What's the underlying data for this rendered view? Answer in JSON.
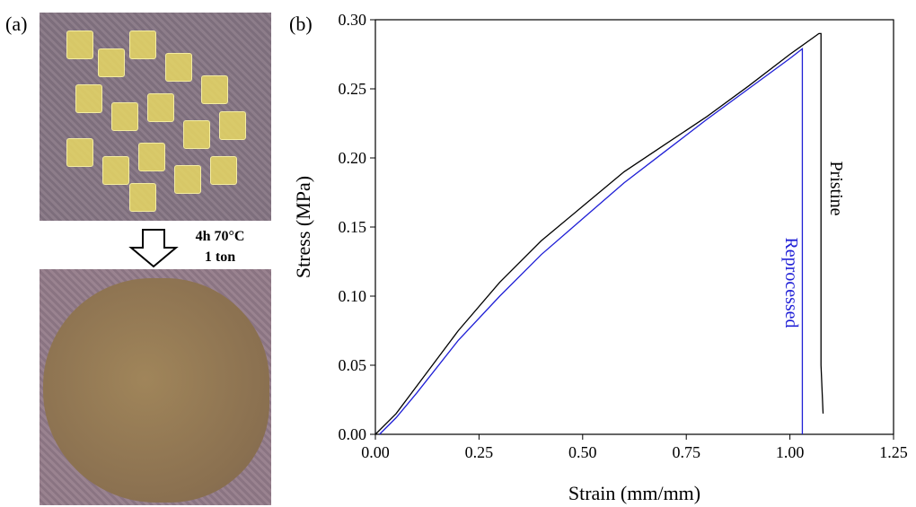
{
  "figure": {
    "panel_a_label": "(a)",
    "panel_b_label": "(b)",
    "process_line1": "4h 70°C",
    "process_line2": "1 ton"
  },
  "chart_data": {
    "type": "line",
    "x_label": "Strain (mm/mm)",
    "y_label": "Stress (MPa)",
    "xlim": [
      0,
      1.25
    ],
    "ylim": [
      0,
      0.3
    ],
    "xticks": [
      {
        "value": 0,
        "label": "0.00"
      },
      {
        "value": 0.25,
        "label": "0.25"
      },
      {
        "value": 0.5,
        "label": "0.50"
      },
      {
        "value": 0.75,
        "label": "0.75"
      },
      {
        "value": 1,
        "label": "1.00"
      },
      {
        "value": 1.25,
        "label": "1.25"
      }
    ],
    "yticks": [
      {
        "value": 0,
        "label": "0.00"
      },
      {
        "value": 0.05,
        "label": "0.05"
      },
      {
        "value": 0.1,
        "label": "0.10"
      },
      {
        "value": 0.15,
        "label": "0.15"
      },
      {
        "value": 0.2,
        "label": "0.20"
      },
      {
        "value": 0.25,
        "label": "0.25"
      },
      {
        "value": 0.3,
        "label": "0.30"
      }
    ],
    "series": [
      {
        "name": "Pristine",
        "color": "#000000",
        "x": [
          0,
          0.05,
          0.1,
          0.2,
          0.3,
          0.4,
          0.5,
          0.6,
          0.7,
          0.8,
          0.9,
          1.0,
          1.07,
          1.075,
          1.075,
          1.08
        ],
        "values": [
          0,
          0.015,
          0.035,
          0.075,
          0.11,
          0.14,
          0.165,
          0.19,
          0.21,
          0.23,
          0.252,
          0.275,
          0.29,
          0.29,
          0.05,
          0.015
        ]
      },
      {
        "name": "Reprocessed",
        "color": "#1f1fd6",
        "x": [
          0.01,
          0.05,
          0.1,
          0.2,
          0.3,
          0.4,
          0.5,
          0.6,
          0.7,
          0.8,
          0.9,
          1.0,
          1.03,
          1.03
        ],
        "values": [
          0,
          0.012,
          0.03,
          0.068,
          0.1,
          0.13,
          0.156,
          0.182,
          0.205,
          0.228,
          0.25,
          0.272,
          0.279,
          0
        ]
      }
    ]
  }
}
